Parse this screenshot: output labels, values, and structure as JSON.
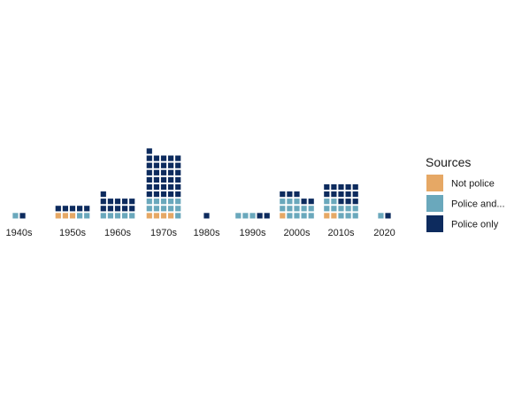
{
  "colors": {
    "Not police": "#E6A865",
    "Police and...": "#6AA8BC",
    "Police only": "#0D2B5E"
  },
  "chart_data": {
    "type": "waffle",
    "title": "",
    "xlabel": "",
    "ylabel": "",
    "categories": [
      "1940s",
      "1950s",
      "1960s",
      "1970s",
      "1980s",
      "1990s",
      "2000s",
      "2010s",
      "2020"
    ],
    "series": [
      {
        "name": "Not police",
        "values": [
          0,
          3,
          0,
          4,
          0,
          0,
          1,
          2,
          0
        ]
      },
      {
        "name": "Police and...",
        "values": [
          1,
          2,
          5,
          11,
          0,
          3,
          12,
          10,
          1
        ]
      },
      {
        "name": "Police only",
        "values": [
          1,
          5,
          11,
          31,
          1,
          2,
          5,
          13,
          1
        ]
      }
    ],
    "legend": {
      "title": "Sources",
      "position": "right",
      "entries": [
        "Not police",
        "Police and...",
        "Police only"
      ]
    },
    "grid": false
  }
}
